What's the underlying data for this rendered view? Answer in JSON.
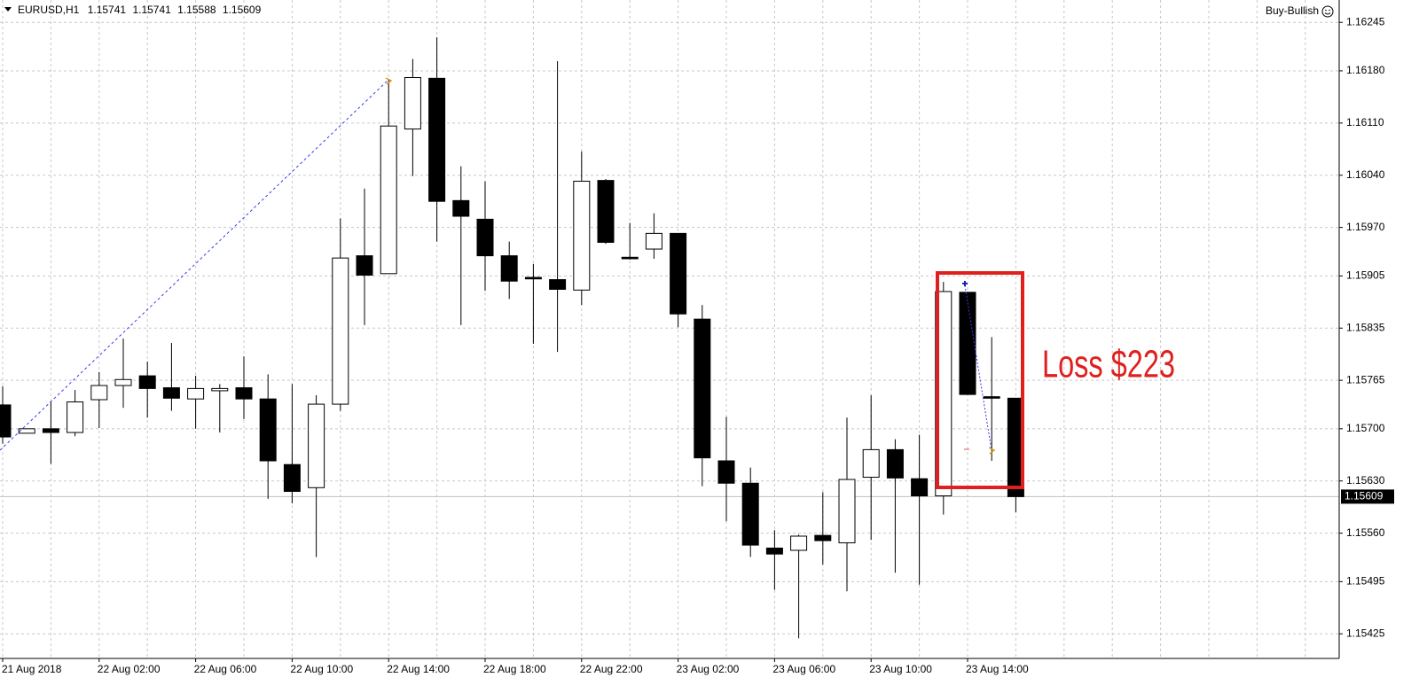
{
  "chart_data": {
    "type": "candlestick",
    "title": "EURUSD,H1",
    "expert": "Buy-Bullish",
    "annotation": "Loss $223",
    "categories": [
      "21 Aug 2018",
      null,
      null,
      null,
      "22 Aug 02:00",
      null,
      null,
      null,
      "22 Aug 06:00",
      null,
      null,
      null,
      "22 Aug 10:00",
      null,
      null,
      null,
      "22 Aug 14:00",
      null,
      null,
      null,
      "22 Aug 18:00",
      null,
      null,
      null,
      "22 Aug 22:00",
      null,
      null,
      null,
      "23 Aug 02:00",
      null,
      null,
      null,
      "23 Aug 06:00",
      null,
      null,
      null,
      "23 Aug 10:00",
      null,
      null,
      null,
      "23 Aug 14:00",
      null,
      null
    ],
    "open": [
      1.15732,
      1.15694,
      1.157,
      1.15695,
      1.15739,
      1.15758,
      1.15771,
      1.15755,
      1.1574,
      1.15751,
      1.15755,
      1.1574,
      1.15652,
      1.15621,
      1.15733,
      1.15932,
      1.15908,
      1.16102,
      1.1617,
      1.16006,
      1.15981,
      1.15932,
      1.15903,
      1.159,
      1.15886,
      1.16033,
      1.1593,
      1.15941,
      1.15962,
      1.15847,
      1.15657,
      1.15627,
      1.1554,
      1.15537,
      1.15557,
      1.15547,
      1.15635,
      1.15672,
      1.15633,
      1.1561,
      1.15883,
      1.15743,
      1.15741
    ],
    "high": [
      1.15757,
      1.157,
      1.15736,
      1.15752,
      1.15776,
      1.15821,
      1.1579,
      1.15815,
      1.15771,
      1.1576,
      1.15797,
      1.15773,
      1.1576,
      1.15745,
      1.15982,
      1.16022,
      1.16168,
      1.16196,
      1.16225,
      1.16052,
      1.16032,
      1.15951,
      1.15921,
      1.16193,
      1.16072,
      1.16035,
      1.15976,
      1.15989,
      1.15962,
      1.15866,
      1.15716,
      1.15648,
      1.15564,
      1.15558,
      1.15615,
      1.15715,
      1.15745,
      1.15686,
      1.15692,
      1.15897,
      1.15883,
      1.15823,
      1.15741
    ],
    "low": [
      1.1568,
      1.15694,
      1.15653,
      1.1569,
      1.15701,
      1.15728,
      1.15715,
      1.15724,
      1.157,
      1.15695,
      1.15713,
      1.15606,
      1.156,
      1.15528,
      1.15724,
      1.15839,
      1.15908,
      1.16039,
      1.15951,
      1.15839,
      1.15885,
      1.15874,
      1.15814,
      1.15803,
      1.15866,
      1.15948,
      1.15927,
      1.15928,
      1.15836,
      1.15623,
      1.15576,
      1.15528,
      1.15484,
      1.15419,
      1.15518,
      1.15482,
      1.15551,
      1.15507,
      1.15491,
      1.15585,
      1.15746,
      1.15657,
      1.15588
    ],
    "close": [
      1.15689,
      1.157,
      1.15695,
      1.15736,
      1.15758,
      1.15766,
      1.15754,
      1.15741,
      1.15754,
      1.15754,
      1.1574,
      1.15657,
      1.15616,
      1.15733,
      1.15929,
      1.15906,
      1.16106,
      1.16171,
      1.16005,
      1.15985,
      1.15932,
      1.15898,
      1.15901,
      1.15887,
      1.16032,
      1.1595,
      1.15928,
      1.15962,
      1.15854,
      1.15661,
      1.15627,
      1.15544,
      1.15532,
      1.15556,
      1.1555,
      1.15632,
      1.15672,
      1.15634,
      1.1561,
      1.15884,
      1.15746,
      1.15741,
      1.15609
    ],
    "ylim": [
      1.15392,
      1.16275
    ],
    "yticks": [
      1.16245,
      {
        "value": 1.1618,
        "label": "1.16180"
      },
      {
        "value": 1.1611,
        "label": "1.16110"
      },
      {
        "value": 1.1604,
        "label": "1.16040"
      },
      {
        "value": 1.1597,
        "label": "1.15970"
      },
      1.15905,
      1.15835,
      1.15765,
      {
        "value": 1.157,
        "label": "1.15700"
      },
      {
        "value": 1.1563,
        "label": "1.15630"
      },
      {
        "value": 1.1556,
        "label": "1.15560"
      },
      1.15495,
      1.15425
    ],
    "grid": true,
    "bull_color": "#ffffff",
    "bear_color": "#000000"
  }
}
